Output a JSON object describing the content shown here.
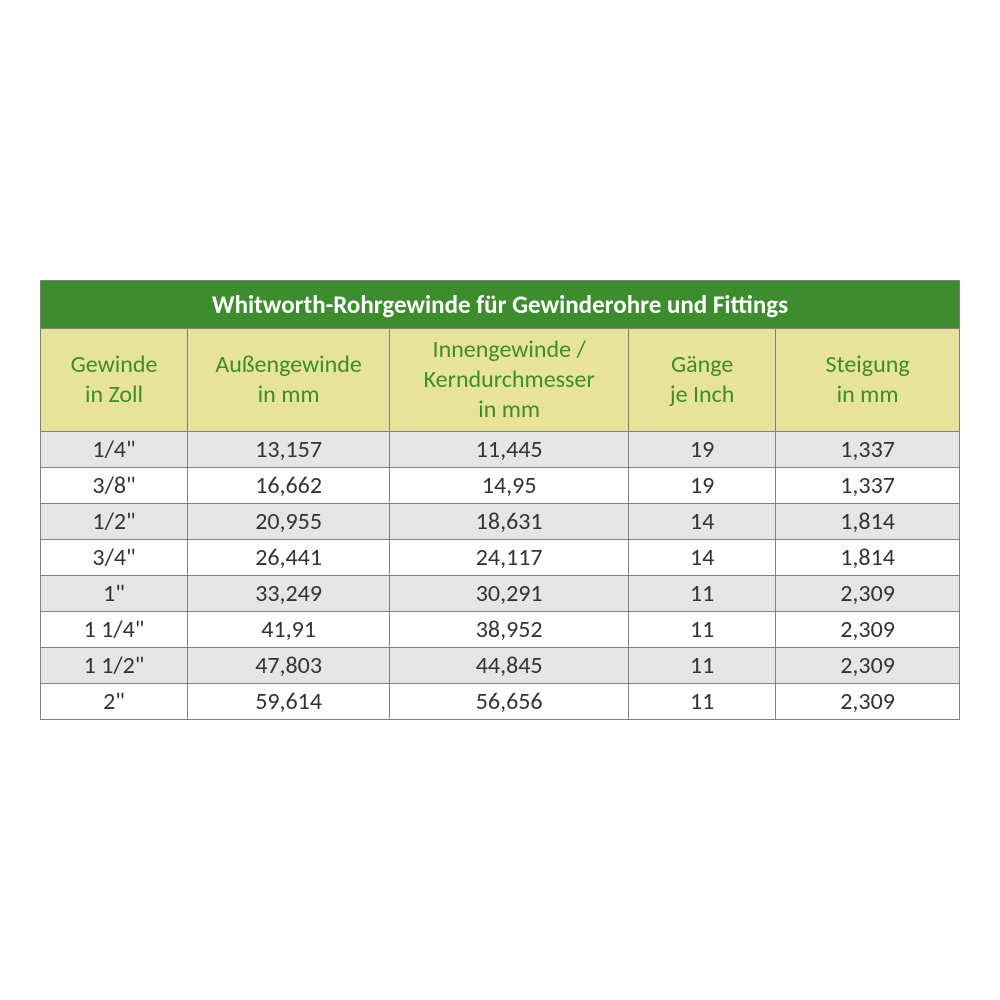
{
  "table": {
    "title": "Whitworth-Rohrgewinde für Gewinderohre und Fittings",
    "title_bg": "#3d8c2e",
    "title_color": "#ffffff",
    "header_bg": "#e8e39b",
    "header_color": "#3d8c2e",
    "row_odd_bg": "#e5e5e5",
    "row_even_bg": "#ffffff",
    "border_color": "#808080",
    "font_family": "Calibri, Arial, sans-serif",
    "title_fontsize": 25,
    "header_fontsize": 24,
    "cell_fontsize": 24,
    "columns": [
      {
        "line1": "Gewinde",
        "line2": "in Zoll",
        "width_pct": 16
      },
      {
        "line1": "Außengewinde",
        "line2": "in mm",
        "width_pct": 22
      },
      {
        "line1": "Innengewinde /",
        "line2": "Kerndurchmesser",
        "line3": "in mm",
        "width_pct": 26
      },
      {
        "line1": "Gänge",
        "line2": "je Inch",
        "width_pct": 16
      },
      {
        "line1": "Steigung",
        "line2": "in mm",
        "width_pct": 20
      }
    ],
    "rows": [
      [
        "1/4\"",
        "13,157",
        "11,445",
        "19",
        "1,337"
      ],
      [
        "3/8\"",
        "16,662",
        "14,95",
        "19",
        "1,337"
      ],
      [
        "1/2\"",
        "20,955",
        "18,631",
        "14",
        "1,814"
      ],
      [
        "3/4\"",
        "26,441",
        "24,117",
        "14",
        "1,814"
      ],
      [
        "1\"",
        "33,249",
        "30,291",
        "11",
        "2,309"
      ],
      [
        "1 1/4\"",
        "41,91",
        "38,952",
        "11",
        "2,309"
      ],
      [
        "1 1/2\"",
        "47,803",
        "44,845",
        "11",
        "2,309"
      ],
      [
        "2\"",
        "59,614",
        "56,656",
        "11",
        "2,309"
      ]
    ]
  }
}
